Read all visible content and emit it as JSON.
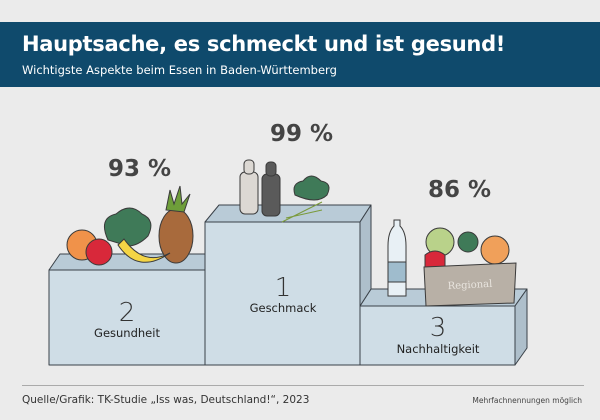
{
  "header": {
    "title": "Hauptsache, es schmeckt und ist gesund!",
    "subtitle": "Wichtigste Aspekte beim Essen in Baden-Württemberg"
  },
  "chart_data": {
    "type": "bar",
    "title": "Hauptsache, es schmeckt und ist gesund!",
    "categories": [
      "Gesundheit",
      "Geschmack",
      "Nachhaltigkeit"
    ],
    "values": [
      93,
      99,
      86
    ],
    "value_labels": [
      "93 %",
      "99 %",
      "86 %"
    ],
    "ranks": [
      "2",
      "1",
      "3"
    ],
    "unit": "%",
    "crate_label": "Regional"
  },
  "colors": {
    "header": "#0f4a6c",
    "podium_front": "#cfdde6",
    "podium_top": "#b9cbd7"
  },
  "footer": {
    "source": "Quelle/Grafik: TK-Studie „Iss was, Deutschland!“, 2023",
    "note": "Mehrfachnennungen möglich"
  }
}
